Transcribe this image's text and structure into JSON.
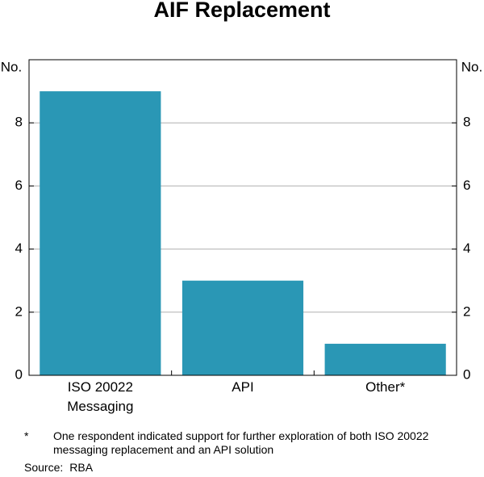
{
  "chart_data": {
    "type": "bar",
    "title": "AIF Replacement",
    "y_label": "No.",
    "y2_label": "No.",
    "categories": [
      "ISO 20022\nMessaging",
      "API",
      "Other*"
    ],
    "values": [
      9,
      3,
      1
    ],
    "color": "#2a97b5",
    "ylim": [
      0,
      10
    ],
    "yticks": [
      0,
      2,
      4,
      6,
      8
    ],
    "grid": true,
    "footnote": {
      "marker": "*",
      "text": "One respondent indicated support for further exploration of both ISO 20022 messaging replacement and an API solution"
    },
    "source": {
      "label": "Source:",
      "text": "RBA"
    }
  }
}
